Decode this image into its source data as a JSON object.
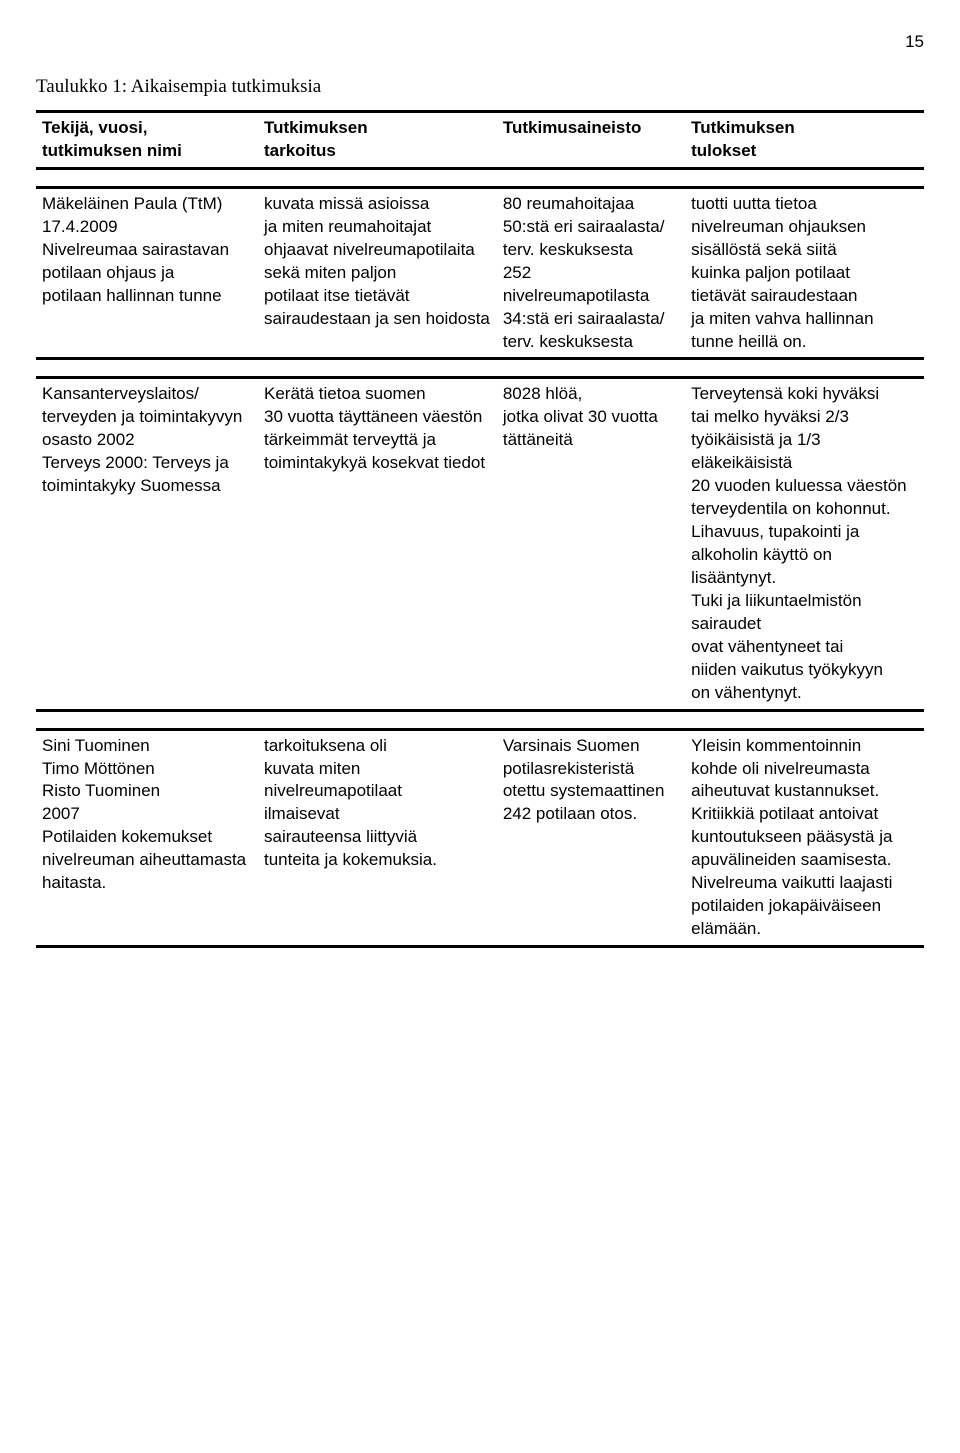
{
  "page_number": "15",
  "title": "Taulukko 1: Aikaisempia tutkimuksia",
  "header": {
    "c1a": "Tekijä, vuosi,",
    "c1b": "tutkimuksen nimi",
    "c2a": "Tutkimuksen",
    "c2b": "tarkoitus",
    "c3a": "Tutkimusaineisto",
    "c4a": "Tutkimuksen",
    "c4b": "tulokset"
  },
  "b1": {
    "c1": [
      "Mäkeläinen Paula  (TtM)",
      "17.4.2009",
      "Nivelreumaa sairastavan",
      "potilaan ohjaus ja",
      "potilaan hallinnan tunne"
    ],
    "c2": [
      "kuvata missä asioissa",
      " ja miten reumahoitajat",
      "ohjaavat nivelreumapotilaita",
      "sekä miten paljon",
      "potilaat itse tietävät",
      "sairaudestaan ja sen hoidosta"
    ],
    "c3": [
      "80 reumahoitajaa",
      "50:stä eri sairaalasta/",
      "terv. keskuksesta",
      "252 nivelreumapotilasta",
      "34:stä eri sairaalasta/",
      "terv. keskuksesta"
    ],
    "c4": [
      "tuotti uutta tietoa",
      "nivelreuman ohjauksen",
      "sisällöstä sekä siitä",
      "kuinka paljon potilaat",
      "tietävät sairaudestaan",
      "ja miten vahva hallinnan",
      "tunne heillä on."
    ]
  },
  "b2": {
    "c1": [
      "Kansanterveyslaitos/",
      "terveyden ja toimintakyvyn",
      "osasto 2002",
      "Terveys 2000: Terveys ja",
      "toimintakyky Suomessa"
    ],
    "c2": [
      "Kerätä tietoa suomen",
      "30 vuotta täyttäneen väestön",
      "tärkeimmät terveyttä ja",
      "toimintakykyä kosekvat tiedot"
    ],
    "c3": [
      "8028 hlöä,",
      "jotka olivat 30 vuotta",
      "tättäneitä"
    ],
    "c4": [
      "Terveytensä koki hyväksi",
      "tai melko hyväksi 2/3",
      "työikäisistä ja 1/3",
      "eläkeikäisistä",
      "20 vuoden kuluessa väestön",
      "terveydentila on kohonnut.",
      "Lihavuus, tupakointi ja",
      "alkoholin käyttö on lisääntynyt.",
      "Tuki ja liikuntaelmistön sairaudet",
      "ovat vähentyneet tai",
      "niiden vaikutus työkykyyn",
      "on vähentynyt."
    ]
  },
  "b3": {
    "c1": [
      "Sini Tuominen",
      "Timo Möttönen",
      "Risto Tuominen",
      "2007",
      "Potilaiden kokemukset",
      "nivelreuman aiheuttamasta",
      "haitasta."
    ],
    "c2": [
      "tarkoituksena oli",
      "kuvata miten",
      "nivelreumapotilaat",
      "ilmaisevat",
      "sairauteensa liittyviä",
      "tunteita ja kokemuksia."
    ],
    "c3": [
      "Varsinais Suomen",
      "potilasrekisteristä",
      "otettu systemaattinen",
      "242 potilaan otos."
    ],
    "c4": [
      "Yleisin kommentoinnin",
      "kohde oli nivelreumasta",
      "aiheutuvat kustannukset.",
      "Kritiikkiä potilaat antoivat",
      "kuntoutukseen pääsystä ja",
      "apuvälineiden saamisesta.",
      "Nivelreuma vaikutti laajasti",
      "potilaiden jokapäiväiseen",
      "elämään."
    ]
  }
}
